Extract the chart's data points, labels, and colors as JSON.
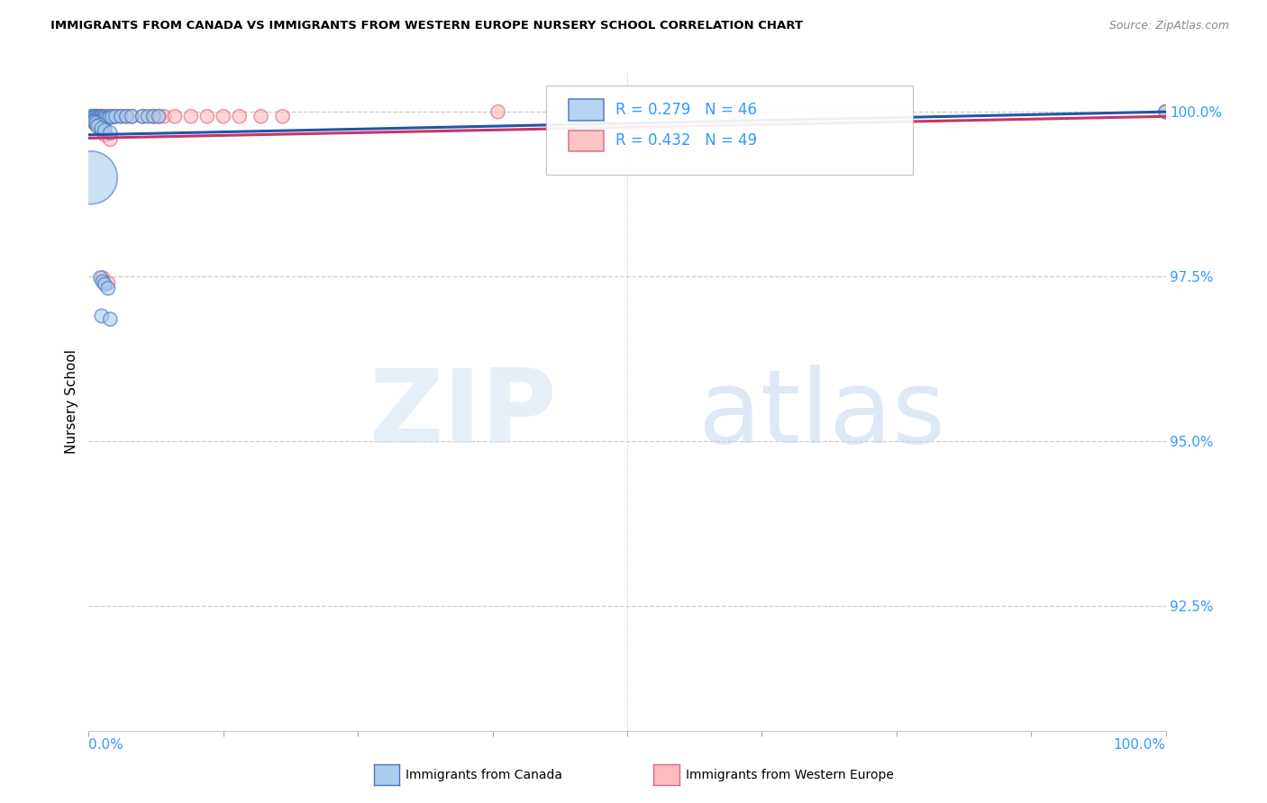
{
  "title": "IMMIGRANTS FROM CANADA VS IMMIGRANTS FROM WESTERN EUROPE NURSERY SCHOOL CORRELATION CHART",
  "source": "Source: ZipAtlas.com",
  "ylabel": "Nursery School",
  "legend_label_blue": "Immigrants from Canada",
  "legend_label_pink": "Immigrants from Western Europe",
  "legend_R_blue": "R = 0.279",
  "legend_N_blue": "N = 46",
  "legend_R_pink": "R = 0.432",
  "legend_N_pink": "N = 49",
  "blue_fill": "#AACCEE",
  "blue_edge": "#4477BB",
  "pink_fill": "#FFBBBB",
  "pink_edge": "#DD6688",
  "line_blue": "#2255AA",
  "line_pink": "#CC3366",
  "bg_color": "#FFFFFF",
  "tick_color": "#3399FF",
  "grid_color": "#CCCCCC",
  "yticks": [
    0.925,
    0.95,
    0.975,
    1.0
  ],
  "ytick_labels": [
    "92.5%",
    "95.0%",
    "97.5%",
    "100.0%"
  ],
  "xlim": [
    0.0,
    1.0
  ],
  "ylim": [
    0.906,
    1.006
  ],
  "blue_x": [
    0.003,
    0.005,
    0.006,
    0.007,
    0.007,
    0.008,
    0.009,
    0.009,
    0.01,
    0.011,
    0.011,
    0.012,
    0.013,
    0.014,
    0.015,
    0.016,
    0.018,
    0.02,
    0.022,
    0.025,
    0.03,
    0.035,
    0.04,
    0.05,
    0.055,
    0.06,
    0.065,
    0.005,
    0.007,
    0.01,
    0.008,
    0.012,
    0.015,
    0.02,
    0.011,
    0.013,
    0.015,
    0.018,
    0.012,
    0.02,
    0.002,
    0.46,
    1.0
  ],
  "blue_y": [
    0.9993,
    0.9992,
    0.9993,
    0.9992,
    0.9988,
    0.999,
    0.9992,
    0.9987,
    0.9992,
    0.9992,
    0.9988,
    0.9992,
    0.999,
    0.999,
    0.9992,
    0.999,
    0.999,
    0.9992,
    0.9992,
    0.9993,
    0.9993,
    0.9993,
    0.9993,
    0.9993,
    0.9993,
    0.9993,
    0.9993,
    0.9985,
    0.9983,
    0.998,
    0.9978,
    0.9975,
    0.9972,
    0.9968,
    0.9748,
    0.9742,
    0.9738,
    0.9732,
    0.969,
    0.9685,
    0.99,
    1.0,
    1.0
  ],
  "blue_sizes": [
    120,
    120,
    120,
    120,
    120,
    120,
    120,
    120,
    120,
    120,
    120,
    120,
    120,
    120,
    120,
    120,
    120,
    120,
    120,
    120,
    120,
    120,
    120,
    120,
    120,
    120,
    120,
    120,
    120,
    120,
    120,
    120,
    120,
    120,
    120,
    120,
    120,
    120,
    120,
    120,
    1800,
    120,
    120
  ],
  "pink_x": [
    0.003,
    0.004,
    0.005,
    0.006,
    0.006,
    0.007,
    0.007,
    0.008,
    0.008,
    0.009,
    0.01,
    0.01,
    0.011,
    0.012,
    0.013,
    0.014,
    0.016,
    0.018,
    0.02,
    0.022,
    0.025,
    0.03,
    0.035,
    0.04,
    0.05,
    0.06,
    0.065,
    0.07,
    0.08,
    0.095,
    0.11,
    0.125,
    0.14,
    0.16,
    0.18,
    0.005,
    0.007,
    0.01,
    0.013,
    0.015,
    0.02,
    0.013,
    0.018,
    0.38,
    0.6,
    1.0
  ],
  "pink_y": [
    0.9993,
    0.9991,
    0.9993,
    0.9993,
    0.9989,
    0.9993,
    0.9989,
    0.9993,
    0.9988,
    0.9992,
    0.9993,
    0.9988,
    0.9993,
    0.9993,
    0.9993,
    0.9993,
    0.9993,
    0.9993,
    0.9993,
    0.9993,
    0.9993,
    0.9993,
    0.9993,
    0.9993,
    0.9993,
    0.9993,
    0.9993,
    0.9993,
    0.9993,
    0.9993,
    0.9993,
    0.9993,
    0.9993,
    0.9993,
    0.9993,
    0.9983,
    0.998,
    0.9975,
    0.997,
    0.9965,
    0.9958,
    0.9748,
    0.974,
    1.0,
    1.0,
    1.0
  ],
  "pink_sizes": [
    120,
    120,
    120,
    120,
    120,
    120,
    120,
    120,
    120,
    120,
    120,
    120,
    120,
    120,
    120,
    120,
    120,
    120,
    120,
    120,
    120,
    120,
    120,
    120,
    120,
    120,
    120,
    120,
    120,
    120,
    120,
    120,
    120,
    120,
    120,
    120,
    120,
    120,
    120,
    120,
    120,
    120,
    120,
    120,
    120,
    120
  ]
}
